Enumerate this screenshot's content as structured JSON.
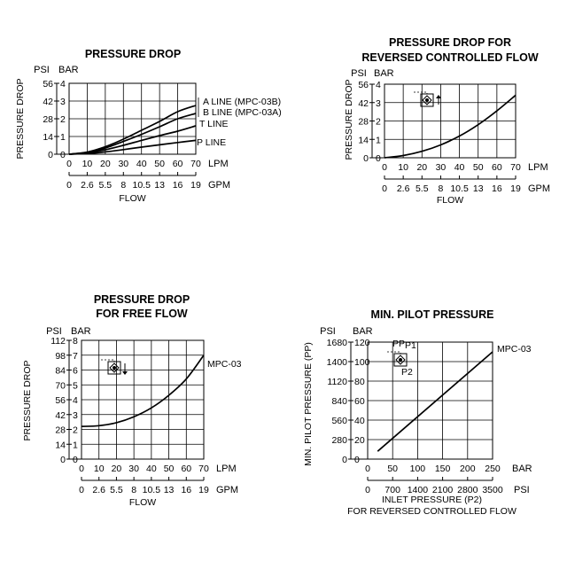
{
  "chart_data": [
    {
      "id": "c1",
      "type": "line",
      "title": [
        "PRESSURE DROP"
      ],
      "ylabel": "PRESSURE DROP",
      "xlabel": "FLOW",
      "y_units": [
        "PSI",
        "BAR"
      ],
      "x_units": [
        "LPM",
        "GPM"
      ],
      "x": [
        0,
        10,
        20,
        30,
        40,
        50,
        60,
        70
      ],
      "xlim": [
        0,
        70
      ],
      "ylim": [
        0,
        4
      ],
      "y_ticks_bar": [
        "4",
        "3",
        "2",
        "1",
        "0"
      ],
      "y_ticks_psi": [
        "56",
        "42",
        "28",
        "14",
        "0"
      ],
      "x_ticks_lpm": [
        "0",
        "10",
        "20",
        "30",
        "40",
        "50",
        "60",
        "70"
      ],
      "x_ticks_gpm": [
        "0",
        "2.6",
        "5.5",
        "8",
        "10.5",
        "13",
        "16",
        "19"
      ],
      "series": [
        {
          "name": "A LINE (MPC-03B)",
          "values": [
            0,
            0.12,
            0.42,
            0.85,
            1.35,
            1.85,
            2.4,
            2.75
          ]
        },
        {
          "name": "B LINE (MPC-03A)",
          "values": [
            0,
            0.1,
            0.35,
            0.72,
            1.12,
            1.55,
            2.0,
            2.3
          ]
        },
        {
          "name": "T LINE",
          "values": [
            0,
            0.08,
            0.25,
            0.5,
            0.78,
            1.05,
            1.3,
            1.6
          ]
        },
        {
          "name": "P LINE",
          "values": [
            0,
            0.04,
            0.13,
            0.26,
            0.4,
            0.53,
            0.66,
            0.78
          ]
        }
      ],
      "series_labels": [
        "A LINE (MPC-03B)",
        "B LINE (MPC-03A)",
        "T LINE",
        "P LINE"
      ],
      "grid": true
    },
    {
      "id": "c2",
      "type": "line",
      "title": [
        "PRESSURE DROP FOR",
        "REVERSED CONTROLLED FLOW"
      ],
      "ylabel": "PRESSURE DROP",
      "xlabel": "FLOW",
      "y_units": [
        "PSI",
        "BAR"
      ],
      "x_units": [
        "LPM",
        "GPM"
      ],
      "x": [
        0,
        10,
        20,
        30,
        40,
        50,
        60,
        70
      ],
      "xlim": [
        0,
        70
      ],
      "ylim": [
        0,
        4
      ],
      "y_ticks_bar": [
        "4",
        "3",
        "2",
        "1",
        "0"
      ],
      "y_ticks_psi": [
        "56",
        "42",
        "28",
        "14",
        "0"
      ],
      "x_ticks_lpm": [
        "0",
        "10",
        "20",
        "30",
        "40",
        "50",
        "60",
        "70"
      ],
      "x_ticks_gpm": [
        "0",
        "2.6",
        "5.5",
        "8",
        "10.5",
        "13",
        "16",
        "19"
      ],
      "series": [
        {
          "values": [
            0,
            0.12,
            0.35,
            0.7,
            1.18,
            1.8,
            2.55,
            3.4
          ]
        }
      ],
      "grid": true,
      "symbol": "check-valve-symbol"
    },
    {
      "id": "c3",
      "type": "line",
      "title": [
        "PRESSURE DROP",
        "FOR FREE FLOW"
      ],
      "ylabel": "PRESSURE DROP",
      "xlabel": "FLOW",
      "y_units": [
        "PSI",
        "BAR"
      ],
      "x_units": [
        "LPM",
        "GPM"
      ],
      "x": [
        0,
        10,
        20,
        30,
        40,
        50,
        60,
        70
      ],
      "xlim": [
        0,
        70
      ],
      "ylim": [
        0,
        8
      ],
      "y_ticks_bar": [
        "8",
        "7",
        "6",
        "5",
        "4",
        "3",
        "2",
        "1",
        "0"
      ],
      "y_ticks_psi": [
        "112",
        "98",
        "84",
        "70",
        "56",
        "42",
        "28",
        "14",
        "0"
      ],
      "x_ticks_lpm": [
        "0",
        "10",
        "20",
        "30",
        "40",
        "50",
        "60",
        "70"
      ],
      "x_ticks_gpm": [
        "0",
        "2.6",
        "5.5",
        "8",
        "10.5",
        "13",
        "16",
        "19"
      ],
      "series": [
        {
          "name": "MPC-03",
          "values": [
            2.2,
            2.25,
            2.45,
            2.85,
            3.45,
            4.3,
            5.4,
            7.0
          ]
        }
      ],
      "series_labels": [
        "MPC-03"
      ],
      "grid": true,
      "symbol": "check-valve-symbol"
    },
    {
      "id": "c4",
      "type": "line",
      "title": [
        "MIN. PILOT PRESSURE"
      ],
      "ylabel": "MIN. PILOT PRESSURE (PP)",
      "xlabel": [
        "INLET PRESSURE (P2)",
        "FOR REVERSED CONTROLLED FLOW"
      ],
      "y_units": [
        "PSI",
        "BAR"
      ],
      "x_units": [
        "BAR",
        "PSI"
      ],
      "x": [
        20,
        250
      ],
      "xlim": [
        0,
        250
      ],
      "ylim": [
        0,
        120
      ],
      "y_ticks_bar": [
        "120",
        "100",
        "80",
        "60",
        "40",
        "20",
        "0"
      ],
      "y_ticks_psi": [
        "1680",
        "1400",
        "1120",
        "840",
        "560",
        "280",
        "0"
      ],
      "x_ticks_bar": [
        "0",
        "50",
        "100",
        "150",
        "200",
        "250"
      ],
      "x_ticks_psi": [
        "0",
        "700",
        "1400",
        "2100",
        "2800",
        "3500"
      ],
      "series": [
        {
          "name": "MPC-03",
          "values": [
            8,
            110
          ]
        }
      ],
      "series_labels": [
        "MPC-03"
      ],
      "grid": true,
      "symbol": "pilot-check-valve-symbol",
      "symbol_labels": [
        "PP",
        "P1",
        "P2"
      ]
    }
  ]
}
